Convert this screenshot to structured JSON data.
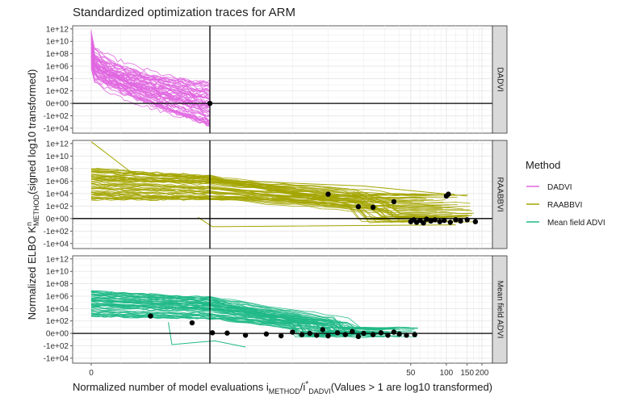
{
  "chart_data": {
    "type": "line",
    "title": "Standardized optimization traces for ARM",
    "xlabel": "Normalized number of model evaluations i_METHOD/i*_DADVI(Values > 1 are log10 transformed)",
    "xlabel_parts": {
      "prefix": "Normalized number of model evaluations i",
      "sub1": "METHOD",
      "mid": "/i",
      "sup2": "*",
      "sub2": "DADVI",
      "suffix": "(Values > 1 are log10 transformed)"
    },
    "ylabel": "Normalized ELBO K^n_METHOD(signed log10 transformed)",
    "ylabel_parts": {
      "prefix": "Normalized ELBO K",
      "sup": "n",
      "sub": "METHOD",
      "suffix": "(signed log10 transformed)"
    },
    "x_ticks": [
      {
        "value": 0,
        "label": "0"
      },
      {
        "value": 50,
        "label": "50"
      },
      {
        "value": 100,
        "label": "100"
      },
      {
        "value": 150,
        "label": "150"
      },
      {
        "value": 200,
        "label": "200"
      }
    ],
    "y_ticks": [
      "1e+12",
      "1e+10",
      "1e+08",
      "1e+06",
      "1e+04",
      "1e+02",
      "0e+00",
      "-1e+02",
      "-1e+04"
    ],
    "grid": true,
    "legend": {
      "title": "Method",
      "placement": "right",
      "entries": [
        {
          "name": "DADVI",
          "color": "#e066e0"
        },
        {
          "name": "RAABBVI",
          "color": "#a3a500"
        },
        {
          "name": "Mean field ADVI",
          "color": "#1fb886"
        }
      ]
    },
    "facets": [
      {
        "label": "DADVI",
        "color": "#e066e0",
        "x_end": 1,
        "start_range": [
          4,
          10
        ],
        "end_range": [
          -3.5,
          3.5
        ],
        "converged_points": [
          {
            "x": 1,
            "y": 0
          }
        ]
      },
      {
        "label": "RAABBVI",
        "color": "#a3a500",
        "x_end_range": [
          50,
          180
        ],
        "start_range": [
          3,
          8
        ],
        "end_range": [
          -0.8,
          4
        ],
        "converged_points": [
          {
            "x": 10,
            "y": 3.9
          },
          {
            "x": 18,
            "y": 1.9
          },
          {
            "x": 24,
            "y": 1.8
          },
          {
            "x": 36,
            "y": 2.7
          },
          {
            "x": 100,
            "y": 3.6
          },
          {
            "x": 104,
            "y": 3.9
          },
          {
            "x": 50,
            "y": -0.5
          },
          {
            "x": 53,
            "y": -0.2
          },
          {
            "x": 56,
            "y": -0.6
          },
          {
            "x": 60,
            "y": -0.3
          },
          {
            "x": 64,
            "y": -0.7
          },
          {
            "x": 68,
            "y": -0.1
          },
          {
            "x": 74,
            "y": -0.4
          },
          {
            "x": 80,
            "y": -0.2
          },
          {
            "x": 88,
            "y": -0.5
          },
          {
            "x": 96,
            "y": -0.3
          },
          {
            "x": 108,
            "y": -0.6
          },
          {
            "x": 120,
            "y": -0.2
          },
          {
            "x": 132,
            "y": -0.4
          },
          {
            "x": 150,
            "y": -0.2
          },
          {
            "x": 176,
            "y": -0.5
          }
        ]
      },
      {
        "label": "Mean field ADVI",
        "color": "#1fb886",
        "x_end_range": [
          10,
          60
        ],
        "start_range": [
          2.5,
          6.8
        ],
        "end_range": [
          -0.6,
          1.0
        ],
        "converged_points": [
          {
            "x": 0.5,
            "y": 2.8
          },
          {
            "x": 0.85,
            "y": 1.7
          },
          {
            "x": 1.05,
            "y": 0.1
          },
          {
            "x": 1.4,
            "y": 0.05
          },
          {
            "x": 2.0,
            "y": -0.3
          },
          {
            "x": 3.0,
            "y": -0.1
          },
          {
            "x": 4.0,
            "y": -0.4
          },
          {
            "x": 5.0,
            "y": 0.2
          },
          {
            "x": 6.0,
            "y": -0.2
          },
          {
            "x": 7.0,
            "y": 0.0
          },
          {
            "x": 8.0,
            "y": -0.3
          },
          {
            "x": 9.0,
            "y": 0.6
          },
          {
            "x": 10,
            "y": -0.4
          },
          {
            "x": 12,
            "y": 0.1
          },
          {
            "x": 14,
            "y": -0.2
          },
          {
            "x": 16,
            "y": 0.3
          },
          {
            "x": 18,
            "y": -0.5
          },
          {
            "x": 20,
            "y": 0.0
          },
          {
            "x": 24,
            "y": -0.2
          },
          {
            "x": 28,
            "y": 0.1
          },
          {
            "x": 32,
            "y": -0.3
          },
          {
            "x": 36,
            "y": 0.2
          },
          {
            "x": 40,
            "y": -0.1
          },
          {
            "x": 46,
            "y": -0.3
          },
          {
            "x": 54,
            "y": -0.2
          }
        ]
      }
    ]
  }
}
